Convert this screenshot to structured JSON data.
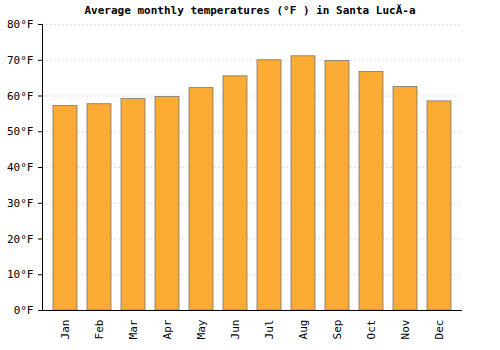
{
  "chart_data": {
    "type": "bar",
    "title": "Average monthly temperatures (°F ) in Santa LucĂ-a",
    "categories": [
      "Jan",
      "Feb",
      "Mar",
      "Apr",
      "May",
      "Jun",
      "Jul",
      "Aug",
      "Sep",
      "Oct",
      "Nov",
      "Dec"
    ],
    "values": [
      57.2,
      57.7,
      59.2,
      59.7,
      62.2,
      65.5,
      70.0,
      71.1,
      69.8,
      66.7,
      62.5,
      58.5
    ],
    "color": "#fbaa33",
    "ylim": [
      0,
      80
    ],
    "yticks": [
      {
        "value": 0,
        "label": "0°F"
      },
      {
        "value": 10,
        "label": "10°F"
      },
      {
        "value": 20,
        "label": "20°F"
      },
      {
        "value": 30,
        "label": "30°F"
      },
      {
        "value": 40,
        "label": "40°F"
      },
      {
        "value": 50,
        "label": "50°F"
      },
      {
        "value": 60,
        "label": "60°F"
      },
      {
        "value": 70,
        "label": "70°F"
      },
      {
        "value": 80,
        "label": "80°F"
      }
    ],
    "grid": true
  }
}
